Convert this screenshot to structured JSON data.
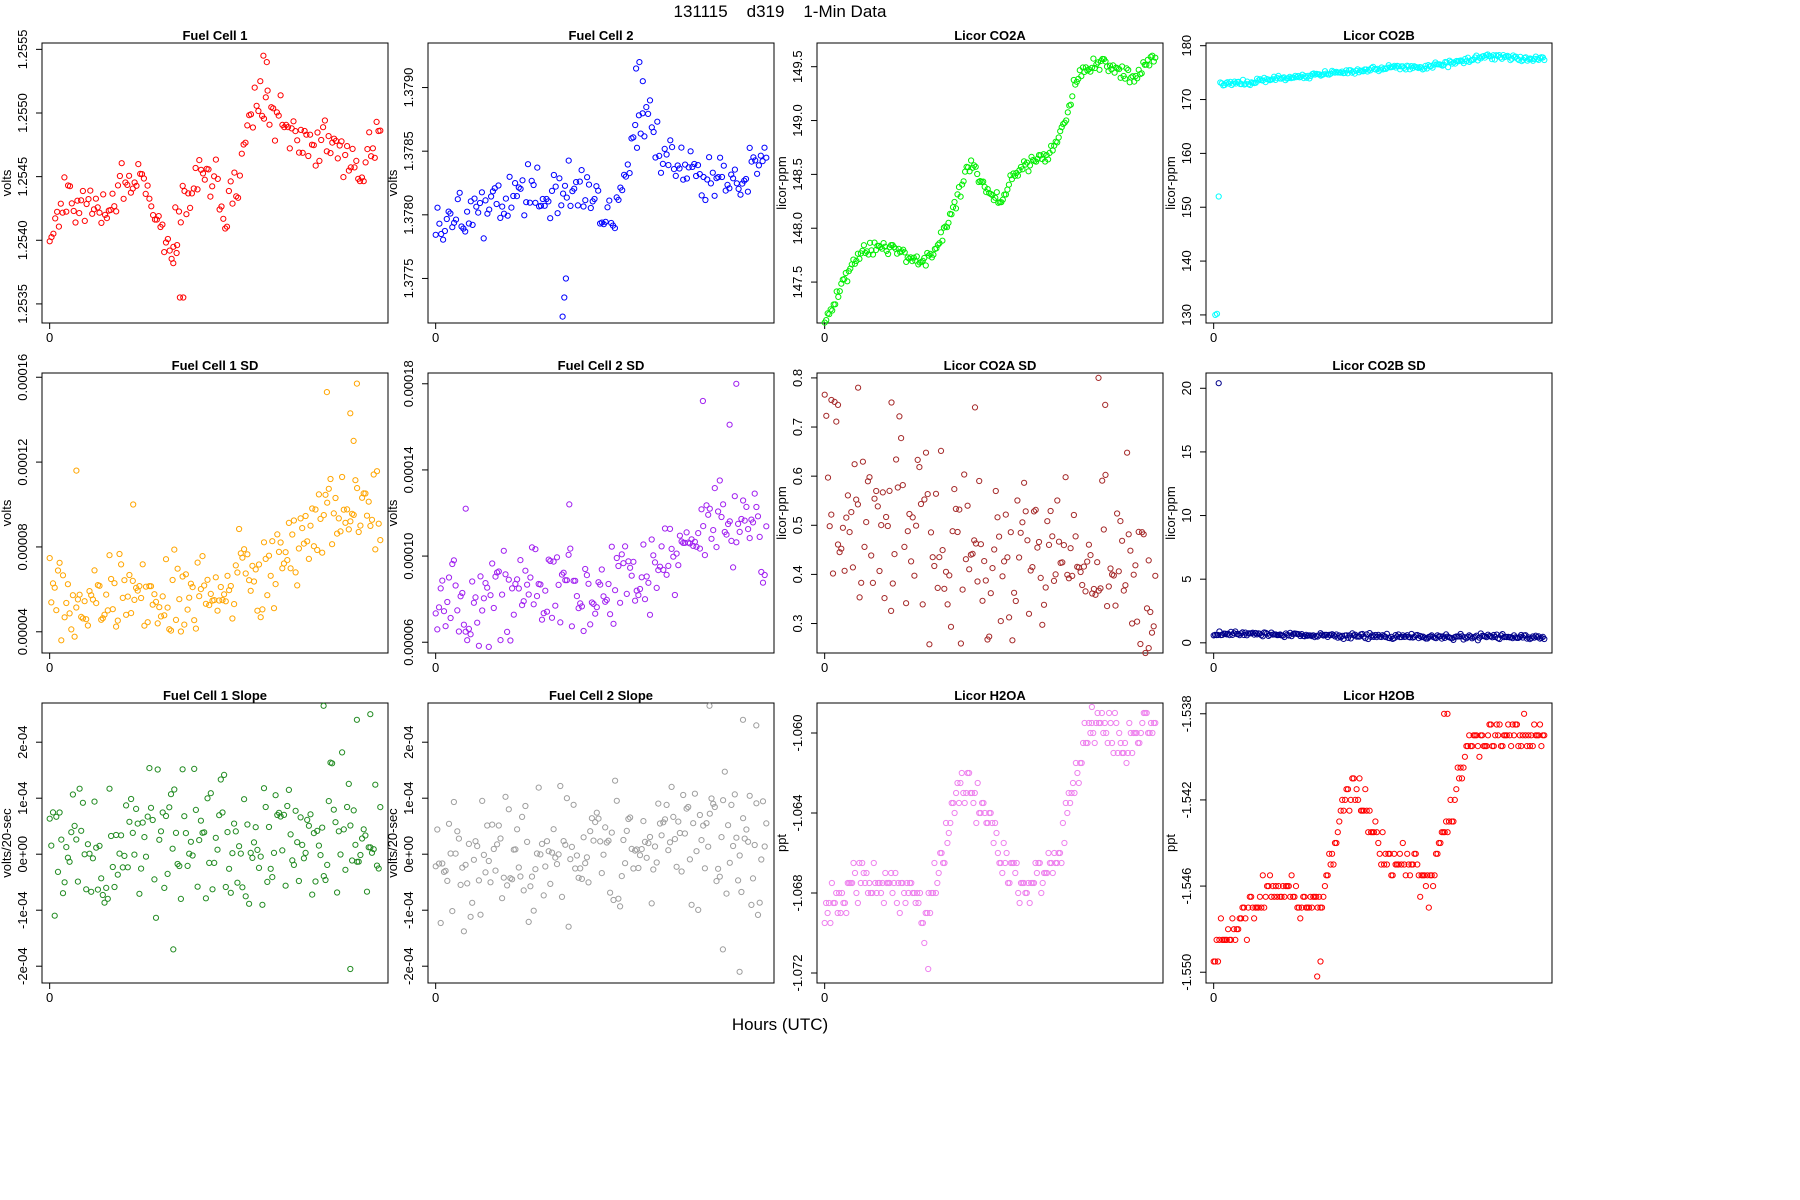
{
  "figure": {
    "title": "131115    d319    1-Min Data",
    "xlabel": "Hours (UTC)",
    "x_tick_label": "0"
  },
  "chart_data": [
    {
      "type": "scatter",
      "title": "Fuel Cell 1",
      "ylabel": "volts",
      "color": "#ff0000",
      "ylim": [
        1.25335,
        1.25555
      ],
      "yticks": [
        1.2535,
        1.254,
        1.2545,
        1.255,
        1.2555
      ],
      "ytick_labels": [
        "1.2535",
        "1.2540",
        "1.2545",
        "1.2550",
        "1.2555"
      ],
      "xlim": [
        -0.005,
        0.995
      ],
      "xticks": [
        0
      ],
      "xtick_labels": [
        "0"
      ],
      "keypoints": [
        [
          0,
          1.2541
        ],
        [
          0.04,
          1.25425
        ],
        [
          0.08,
          1.2543
        ],
        [
          0.12,
          1.25425
        ],
        [
          0.16,
          1.25425
        ],
        [
          0.2,
          1.2544
        ],
        [
          0.24,
          1.25445
        ],
        [
          0.28,
          1.2544
        ],
        [
          0.32,
          1.2543
        ],
        [
          0.36,
          1.25395
        ],
        [
          0.4,
          1.2543
        ],
        [
          0.44,
          1.25445
        ],
        [
          0.48,
          1.25455
        ],
        [
          0.52,
          1.2542
        ],
        [
          0.56,
          1.2544
        ],
        [
          0.6,
          1.25505
        ],
        [
          0.64,
          1.2551
        ],
        [
          0.68,
          1.25495
        ],
        [
          0.72,
          1.2548
        ],
        [
          0.76,
          1.25475
        ],
        [
          0.8,
          1.25475
        ],
        [
          0.84,
          1.2548
        ],
        [
          0.88,
          1.2546
        ],
        [
          0.92,
          1.25455
        ],
        [
          0.96,
          1.2547
        ],
        [
          0.99,
          1.2548
        ]
      ],
      "noise": 9e-05,
      "n": 180,
      "outliers": [
        [
          0.39,
          1.25355
        ],
        [
          0.4,
          1.25355
        ],
        [
          0.37,
          1.25382
        ],
        [
          0.38,
          1.2539
        ],
        [
          0.64,
          1.25545
        ],
        [
          0.65,
          1.2554
        ]
      ]
    },
    {
      "type": "scatter",
      "title": "Fuel Cell 2",
      "ylabel": "volts",
      "color": "#0000ff",
      "ylim": [
        1.37715,
        1.37935
      ],
      "yticks": [
        1.3775,
        1.378,
        1.3785,
        1.379
      ],
      "ytick_labels": [
        "1.3775",
        "1.3780",
        "1.3785",
        "1.3790"
      ],
      "xlim": [
        -0.005,
        0.995
      ],
      "xticks": [
        0
      ],
      "xtick_labels": [
        "0"
      ],
      "keypoints": [
        [
          0,
          1.3779
        ],
        [
          0.04,
          1.37795
        ],
        [
          0.08,
          1.378
        ],
        [
          0.12,
          1.37805
        ],
        [
          0.16,
          1.3781
        ],
        [
          0.2,
          1.37815
        ],
        [
          0.24,
          1.3782
        ],
        [
          0.28,
          1.37815
        ],
        [
          0.32,
          1.3781
        ],
        [
          0.36,
          1.3782
        ],
        [
          0.4,
          1.3782
        ],
        [
          0.44,
          1.37815
        ],
        [
          0.48,
          1.3781
        ],
        [
          0.52,
          1.378
        ],
        [
          0.56,
          1.37815
        ],
        [
          0.6,
          1.3787
        ],
        [
          0.64,
          1.37875
        ],
        [
          0.68,
          1.3785
        ],
        [
          0.72,
          1.37835
        ],
        [
          0.76,
          1.3784
        ],
        [
          0.8,
          1.3783
        ],
        [
          0.84,
          1.37825
        ],
        [
          0.88,
          1.3782
        ],
        [
          0.92,
          1.37825
        ],
        [
          0.96,
          1.3784
        ],
        [
          0.99,
          1.3785
        ]
      ],
      "noise": 0.0001,
      "n": 180,
      "outliers": [
        [
          0.38,
          1.3772
        ],
        [
          0.385,
          1.37735
        ],
        [
          0.39,
          1.3775
        ],
        [
          0.6,
          1.37915
        ],
        [
          0.62,
          1.37905
        ],
        [
          0.61,
          1.3792
        ]
      ]
    },
    {
      "type": "scatter",
      "title": "Licor CO2A",
      "ylabel": "licor-ppm",
      "color": "#00ee00",
      "ylim": [
        147.12,
        149.72
      ],
      "yticks": [
        147.5,
        148,
        148.5,
        149,
        149.5
      ],
      "ytick_labels": [
        "147.5",
        "148.0",
        "148.5",
        "149.0",
        "149.5"
      ],
      "xlim": [
        -0.005,
        0.995
      ],
      "xticks": [
        0
      ],
      "xtick_labels": [
        "0"
      ],
      "keypoints": [
        [
          0,
          147.15
        ],
        [
          0.03,
          147.3
        ],
        [
          0.06,
          147.55
        ],
        [
          0.1,
          147.75
        ],
        [
          0.14,
          147.8
        ],
        [
          0.2,
          147.8
        ],
        [
          0.24,
          147.75
        ],
        [
          0.28,
          147.7
        ],
        [
          0.32,
          147.75
        ],
        [
          0.36,
          148.0
        ],
        [
          0.4,
          148.3
        ],
        [
          0.43,
          148.6
        ],
        [
          0.46,
          148.5
        ],
        [
          0.5,
          148.3
        ],
        [
          0.53,
          148.25
        ],
        [
          0.56,
          148.5
        ],
        [
          0.6,
          148.6
        ],
        [
          0.64,
          148.65
        ],
        [
          0.68,
          148.7
        ],
        [
          0.72,
          149.0
        ],
        [
          0.76,
          149.45
        ],
        [
          0.8,
          149.5
        ],
        [
          0.84,
          149.55
        ],
        [
          0.88,
          149.45
        ],
        [
          0.92,
          149.4
        ],
        [
          0.96,
          149.5
        ],
        [
          0.99,
          149.6
        ]
      ],
      "noise": 0.035,
      "n": 220,
      "outliers": []
    },
    {
      "type": "scatter",
      "title": "Licor CO2B",
      "ylabel": "licor-ppm",
      "color": "#00ffff",
      "ylim": [
        128.5,
        180.5
      ],
      "yticks": [
        130,
        140,
        150,
        160,
        170,
        180
      ],
      "ytick_labels": [
        "130",
        "140",
        "150",
        "160",
        "170",
        "180"
      ],
      "xlim": [
        -0.005,
        0.995
      ],
      "xticks": [
        0
      ],
      "xtick_labels": [
        "0"
      ],
      "keypoints": [
        [
          0.02,
          173
        ],
        [
          0.1,
          173.2
        ],
        [
          0.2,
          174
        ],
        [
          0.3,
          174.6
        ],
        [
          0.4,
          175.2
        ],
        [
          0.5,
          175.8
        ],
        [
          0.55,
          176.2
        ],
        [
          0.6,
          175.9
        ],
        [
          0.65,
          176.4
        ],
        [
          0.7,
          176.6
        ],
        [
          0.75,
          177.2
        ],
        [
          0.8,
          177.8
        ],
        [
          0.85,
          177.9
        ],
        [
          0.9,
          177.7
        ],
        [
          0.95,
          177.6
        ],
        [
          0.99,
          177.5
        ]
      ],
      "noise": 0.25,
      "n": 230,
      "outliers": [
        [
          0.005,
          130
        ],
        [
          0.01,
          130.2
        ],
        [
          0.015,
          152
        ]
      ]
    },
    {
      "type": "scatter",
      "title": "Fuel Cell 1 SD",
      "ylabel": "volts",
      "color": "#ffa500",
      "ylim": [
        3e-05,
        0.000162
      ],
      "yticks": [
        4e-05,
        8e-05,
        0.00012,
        0.00016
      ],
      "ytick_labels": [
        "0.00004",
        "0.00008",
        "0.00012",
        "0.00016"
      ],
      "xlim": [
        -0.005,
        0.995
      ],
      "xticks": [
        0
      ],
      "xtick_labels": [
        "0"
      ],
      "keypoints": [
        [
          0,
          6e-05
        ],
        [
          0.1,
          5.2e-05
        ],
        [
          0.2,
          5.8e-05
        ],
        [
          0.3,
          5.6e-05
        ],
        [
          0.4,
          6e-05
        ],
        [
          0.5,
          6e-05
        ],
        [
          0.6,
          6.6e-05
        ],
        [
          0.7,
          7.4e-05
        ],
        [
          0.8,
          9e-05
        ],
        [
          0.88,
          0.0001
        ],
        [
          0.95,
          9.5e-05
        ],
        [
          0.99,
          9e-05
        ]
      ],
      "noise": 9.5e-06,
      "n": 200,
      "outliers": [
        [
          0.08,
          0.000116
        ],
        [
          0.25,
          0.0001
        ],
        [
          0.83,
          0.000153
        ],
        [
          0.9,
          0.000143
        ],
        [
          0.92,
          0.000157
        ],
        [
          0.91,
          0.00013
        ]
      ]
    },
    {
      "type": "scatter",
      "title": "Fuel Cell 2 SD",
      "ylabel": "volts",
      "color": "#a020f0",
      "ylim": [
        5.5e-05,
        0.000185
      ],
      "yticks": [
        6e-05,
        0.0001,
        0.00014,
        0.00018
      ],
      "ytick_labels": [
        "0.00006",
        "0.00010",
        "0.00014",
        "0.00018"
      ],
      "xlim": [
        -0.005,
        0.995
      ],
      "xticks": [
        0
      ],
      "xtick_labels": [
        "0"
      ],
      "keypoints": [
        [
          0,
          7.8e-05
        ],
        [
          0.1,
          7.6e-05
        ],
        [
          0.2,
          8.2e-05
        ],
        [
          0.3,
          8.4e-05
        ],
        [
          0.4,
          8.6e-05
        ],
        [
          0.5,
          8.6e-05
        ],
        [
          0.6,
          8.8e-05
        ],
        [
          0.7,
          9.8e-05
        ],
        [
          0.8,
          0.000115
        ],
        [
          0.9,
          0.000118
        ],
        [
          0.99,
          0.00011
        ]
      ],
      "noise": 9.5e-06,
      "n": 200,
      "outliers": [
        [
          0.8,
          0.000172
        ],
        [
          0.9,
          0.00018
        ],
        [
          0.88,
          0.000161
        ],
        [
          0.09,
          0.000122
        ],
        [
          0.4,
          0.000124
        ]
      ]
    },
    {
      "type": "scatter",
      "title": "Licor CO2A SD",
      "ylabel": "licor-ppm",
      "color": "#a52a2a",
      "ylim": [
        0.24,
        0.81
      ],
      "yticks": [
        0.3,
        0.4,
        0.5,
        0.6,
        0.7,
        0.8
      ],
      "ytick_labels": [
        "0.3",
        "0.4",
        "0.5",
        "0.6",
        "0.7",
        "0.8"
      ],
      "xlim": [
        -0.005,
        0.995
      ],
      "xticks": [
        0
      ],
      "xtick_labels": [
        "0"
      ],
      "keypoints": [
        [
          0,
          0.6
        ],
        [
          0.1,
          0.5
        ],
        [
          0.2,
          0.5
        ],
        [
          0.3,
          0.47
        ],
        [
          0.4,
          0.45
        ],
        [
          0.5,
          0.42
        ],
        [
          0.6,
          0.42
        ],
        [
          0.7,
          0.5
        ],
        [
          0.8,
          0.45
        ],
        [
          0.9,
          0.42
        ],
        [
          0.99,
          0.35
        ]
      ],
      "noise": 0.085,
      "n": 200,
      "outliers": [
        [
          0.02,
          0.755
        ],
        [
          0.04,
          0.745
        ],
        [
          0.1,
          0.78
        ],
        [
          0.2,
          0.75
        ],
        [
          0.45,
          0.74
        ],
        [
          0.82,
          0.8
        ],
        [
          0.84,
          0.745
        ],
        [
          0.97,
          0.25
        ]
      ]
    },
    {
      "type": "scatter",
      "title": "Licor CO2B SD",
      "ylabel": "licor-ppm",
      "color": "#00008b",
      "ylim": [
        -0.8,
        21.2
      ],
      "yticks": [
        0,
        5,
        10,
        15,
        20
      ],
      "ytick_labels": [
        "0",
        "5",
        "10",
        "15",
        "20"
      ],
      "xlim": [
        -0.005,
        0.995
      ],
      "xticks": [
        0
      ],
      "xtick_labels": [
        "0"
      ],
      "keypoints": [
        [
          0,
          0.7
        ],
        [
          0.3,
          0.6
        ],
        [
          0.6,
          0.5
        ],
        [
          0.99,
          0.45
        ]
      ],
      "noise": 0.1,
      "n": 230,
      "outliers": [
        [
          0.015,
          20.4
        ]
      ]
    },
    {
      "type": "scatter",
      "title": "Fuel Cell 1 Slope",
      "ylabel": "volts/20-sec",
      "color": "#228b22",
      "ylim": [
        -0.00023,
        0.00027
      ],
      "yticks": [
        -0.0002,
        -0.0001,
        0,
        0.0001,
        0.0002
      ],
      "ytick_labels": [
        "-2e-04",
        "-1e-04",
        "0e+00",
        "1e-04",
        "2e-04"
      ],
      "xlim": [
        -0.005,
        0.995
      ],
      "xticks": [
        0
      ],
      "xtick_labels": [
        "0"
      ],
      "keypoints": [
        [
          0,
          1e-05
        ],
        [
          0.5,
          2e-05
        ],
        [
          0.99,
          3e-05
        ]
      ],
      "noise": 6e-05,
      "n": 200,
      "outliers": [
        [
          0.82,
          0.000265
        ],
        [
          0.92,
          0.00024
        ],
        [
          0.96,
          0.00025
        ],
        [
          0.9,
          -0.000205
        ],
        [
          0.37,
          -0.00017
        ]
      ]
    },
    {
      "type": "scatter",
      "title": "Fuel Cell 2 Slope",
      "ylabel": "volts/20-sec",
      "color": "#9e9e9e",
      "ylim": [
        -0.00023,
        0.00027
      ],
      "yticks": [
        -0.0002,
        -0.0001,
        0,
        0.0001,
        0.0002
      ],
      "ytick_labels": [
        "-2e-04",
        "-1e-04",
        "0e+00",
        "1e-04",
        "2e-04"
      ],
      "xlim": [
        -0.005,
        0.995
      ],
      "xticks": [
        0
      ],
      "xtick_labels": [
        "0"
      ],
      "keypoints": [
        [
          0,
          0.0
        ],
        [
          0.5,
          1e-05
        ],
        [
          0.99,
          2e-05
        ]
      ],
      "noise": 6e-05,
      "n": 200,
      "outliers": [
        [
          0.82,
          0.000265
        ],
        [
          0.92,
          0.00024
        ],
        [
          0.96,
          0.00023
        ],
        [
          0.91,
          -0.00021
        ],
        [
          0.86,
          -0.00017
        ]
      ]
    },
    {
      "type": "scatter",
      "title": "Licor H2OA",
      "ylabel": "ppt",
      "color": "#ee82ee",
      "ylim": [
        -1.0725,
        -1.0585
      ],
      "yticks": [
        -1.072,
        -1.068,
        -1.064,
        -1.06
      ],
      "ytick_labels": [
        "-1.072",
        "-1.068",
        "-1.064",
        "-1.060"
      ],
      "xlim": [
        -0.005,
        0.995
      ],
      "xticks": [
        0
      ],
      "xtick_labels": [
        "0"
      ],
      "quantum": 0.0005,
      "keypoints": [
        [
          0,
          -1.069
        ],
        [
          0.1,
          -1.0675
        ],
        [
          0.2,
          -1.0675
        ],
        [
          0.26,
          -1.068
        ],
        [
          0.3,
          -1.0695
        ],
        [
          0.34,
          -1.0675
        ],
        [
          0.38,
          -1.064
        ],
        [
          0.42,
          -1.0625
        ],
        [
          0.46,
          -1.0635
        ],
        [
          0.5,
          -1.0645
        ],
        [
          0.54,
          -1.0665
        ],
        [
          0.58,
          -1.0675
        ],
        [
          0.64,
          -1.0675
        ],
        [
          0.7,
          -1.066
        ],
        [
          0.76,
          -1.0615
        ],
        [
          0.8,
          -1.0598
        ],
        [
          0.85,
          -1.0598
        ],
        [
          0.9,
          -1.0605
        ],
        [
          0.95,
          -1.0598
        ],
        [
          0.99,
          -1.0598
        ]
      ],
      "noise": 0.00055,
      "n": 230,
      "outliers": [
        [
          0.31,
          -1.0718
        ],
        [
          0.8,
          -1.0587
        ]
      ]
    },
    {
      "type": "scatter",
      "title": "Licor H2OB",
      "ylabel": "ppt",
      "color": "#ff0000",
      "ylim": [
        -1.5505,
        -1.5375
      ],
      "yticks": [
        -1.55,
        -1.546,
        -1.542,
        -1.538
      ],
      "ytick_labels": [
        "-1.550",
        "-1.546",
        "-1.542",
        "-1.538"
      ],
      "xlim": [
        -0.005,
        0.995
      ],
      "xticks": [
        0
      ],
      "xtick_labels": [
        "0"
      ],
      "keypoints": [
        [
          0,
          -1.549
        ],
        [
          0.06,
          -1.548
        ],
        [
          0.14,
          -1.5465
        ],
        [
          0.22,
          -1.546
        ],
        [
          0.28,
          -1.547
        ],
        [
          0.33,
          -1.5465
        ],
        [
          0.38,
          -1.543
        ],
        [
          0.42,
          -1.5415
        ],
        [
          0.46,
          -1.5425
        ],
        [
          0.52,
          -1.545
        ],
        [
          0.6,
          -1.545
        ],
        [
          0.64,
          -1.546
        ],
        [
          0.7,
          -1.543
        ],
        [
          0.76,
          -1.5395
        ],
        [
          0.82,
          -1.539
        ],
        [
          0.9,
          -1.539
        ],
        [
          0.99,
          -1.539
        ]
      ],
      "noise": 0.00045,
      "quantum": 0.0005,
      "n": 230,
      "outliers": [
        [
          0.31,
          -1.5502
        ],
        [
          0.32,
          -1.5495
        ],
        [
          0.69,
          -1.538
        ],
        [
          0.7,
          -1.538
        ]
      ]
    }
  ]
}
